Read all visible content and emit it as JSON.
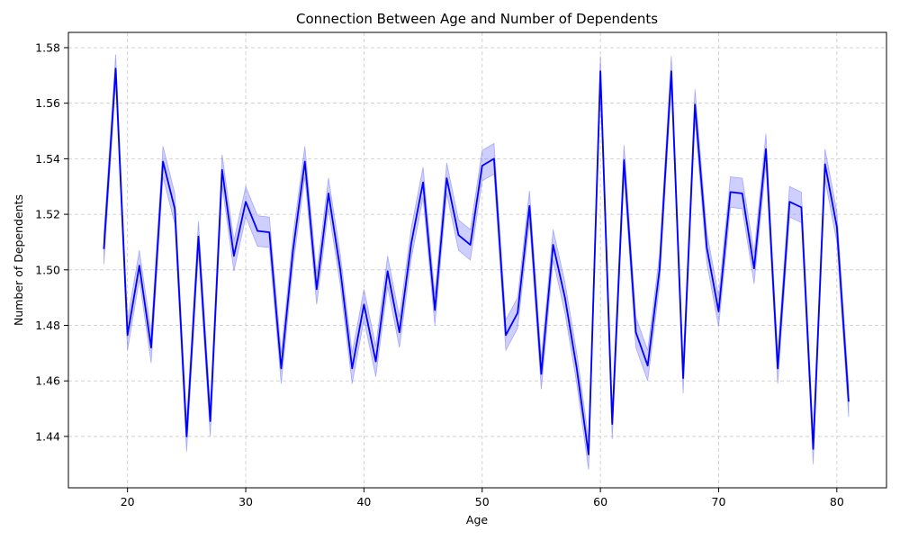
{
  "chart_data": {
    "type": "line",
    "title": "Connection Between Age and Number of Dependents",
    "xlabel": "Age",
    "ylabel": "Number of Dependents",
    "xlim": [
      15,
      84.2
    ],
    "ylim": [
      1.4215,
      1.5855
    ],
    "xticks": [
      "20",
      "30",
      "40",
      "50",
      "60",
      "70",
      "80"
    ],
    "yticks": [
      "1.44",
      "1.46",
      "1.48",
      "1.50",
      "1.52",
      "1.54",
      "1.56",
      "1.58"
    ],
    "grid": true,
    "line_color": "#0000ff",
    "band_color": "#6b6bff",
    "series": [
      {
        "x": [
          18,
          19,
          20,
          21,
          22,
          23,
          24,
          25,
          26,
          27,
          28,
          29,
          30,
          31,
          32,
          33,
          34,
          35,
          36,
          37,
          38,
          39,
          40,
          41,
          42,
          43,
          44,
          45,
          46,
          47,
          48,
          49,
          50,
          51,
          52,
          53,
          54,
          55,
          56,
          57,
          58,
          59,
          60,
          61,
          62,
          63,
          64,
          65,
          66,
          67,
          68,
          69,
          70,
          71,
          72,
          73,
          74,
          75,
          76,
          77,
          78,
          79,
          80,
          81
        ],
        "y": [
          1.5075,
          1.5725,
          1.4765,
          1.5015,
          1.472,
          1.539,
          1.522,
          1.44,
          1.512,
          1.4455,
          1.536,
          1.505,
          1.5245,
          1.514,
          1.5135,
          1.4645,
          1.507,
          1.539,
          1.493,
          1.5275,
          1.5,
          1.4645,
          1.4875,
          1.467,
          1.4995,
          1.4775,
          1.5095,
          1.5315,
          1.4855,
          1.533,
          1.5125,
          1.509,
          1.5375,
          1.54,
          1.4765,
          1.4845,
          1.523,
          1.4625,
          1.509,
          1.49,
          1.4645,
          1.4335,
          1.5715,
          1.4445,
          1.5395,
          1.4775,
          1.4655,
          1.5,
          1.5715,
          1.461,
          1.5595,
          1.508,
          1.485,
          1.528,
          1.5275,
          1.5005,
          1.5435,
          1.4645,
          1.5245,
          1.5225,
          1.4355,
          1.538,
          1.5155,
          1.4525
        ],
        "ci_lower": [
          1.502,
          1.5675,
          1.471,
          1.4965,
          1.4665,
          1.5335,
          1.5165,
          1.4345,
          1.5065,
          1.44,
          1.5305,
          1.4995,
          1.519,
          1.5085,
          1.508,
          1.459,
          1.5015,
          1.5335,
          1.4875,
          1.522,
          1.4945,
          1.459,
          1.482,
          1.4615,
          1.494,
          1.472,
          1.504,
          1.526,
          1.48,
          1.5275,
          1.507,
          1.5035,
          1.532,
          1.5345,
          1.471,
          1.479,
          1.5175,
          1.457,
          1.5035,
          1.4845,
          1.459,
          1.428,
          1.566,
          1.439,
          1.534,
          1.472,
          1.46,
          1.4945,
          1.566,
          1.4555,
          1.554,
          1.5025,
          1.4795,
          1.5225,
          1.522,
          1.495,
          1.538,
          1.459,
          1.519,
          1.517,
          1.43,
          1.5325,
          1.51,
          1.447
        ],
        "ci_upper": [
          1.513,
          1.5775,
          1.482,
          1.507,
          1.4775,
          1.5445,
          1.5275,
          1.4455,
          1.5175,
          1.451,
          1.5415,
          1.5105,
          1.53,
          1.5195,
          1.519,
          1.47,
          1.5125,
          1.5445,
          1.4985,
          1.533,
          1.5055,
          1.47,
          1.493,
          1.4725,
          1.505,
          1.483,
          1.515,
          1.537,
          1.491,
          1.5385,
          1.518,
          1.5145,
          1.543,
          1.5455,
          1.482,
          1.49,
          1.5285,
          1.468,
          1.5145,
          1.4955,
          1.47,
          1.439,
          1.577,
          1.45,
          1.545,
          1.483,
          1.471,
          1.5055,
          1.577,
          1.4665,
          1.565,
          1.5135,
          1.4905,
          1.5335,
          1.533,
          1.506,
          1.549,
          1.47,
          1.53,
          1.528,
          1.441,
          1.5435,
          1.521,
          1.458
        ]
      }
    ]
  }
}
